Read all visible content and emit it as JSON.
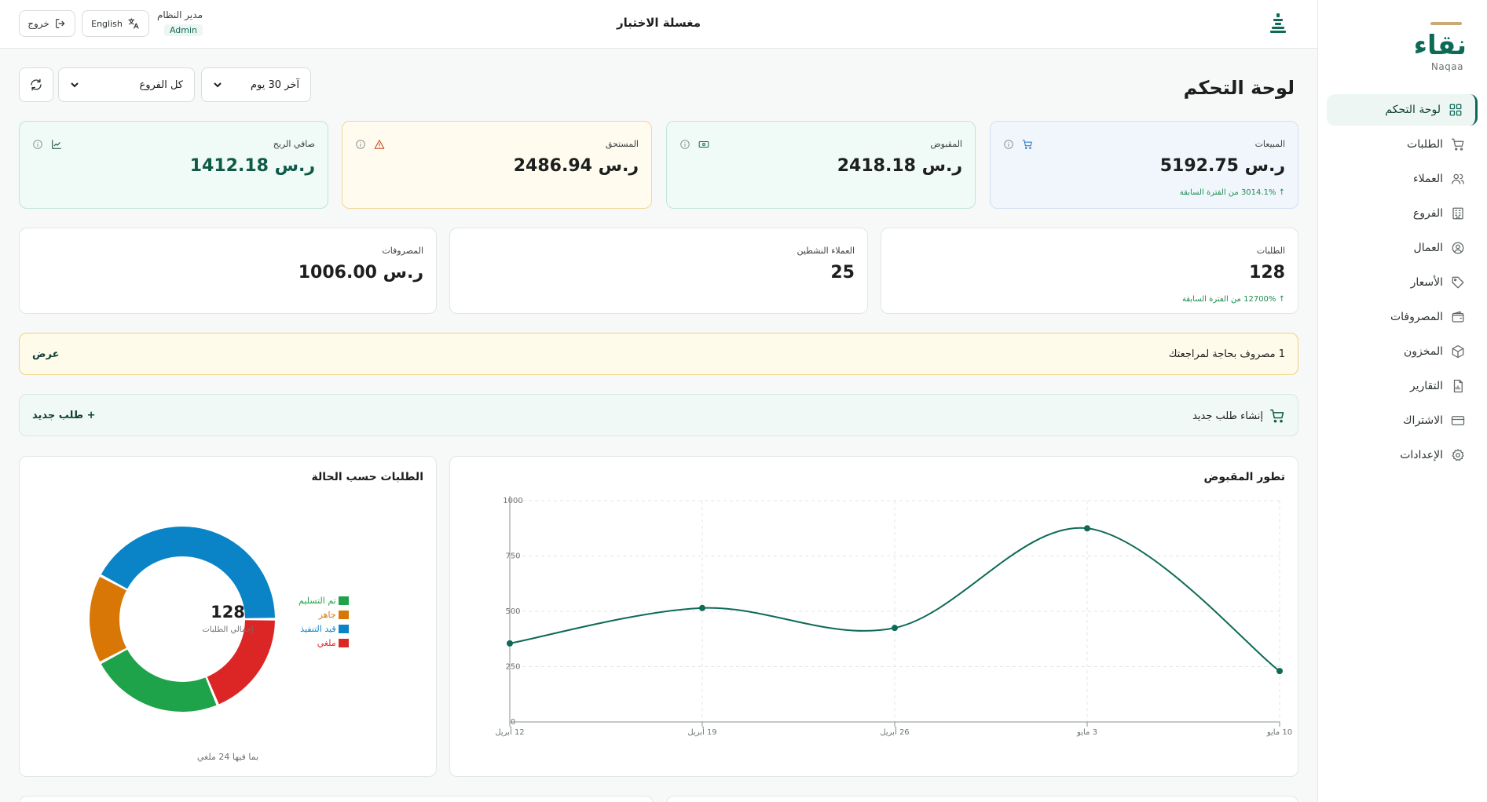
{
  "app": {
    "name": "نقاء",
    "name_latin": "Naqaa",
    "brand_color": "#0e6a57"
  },
  "sidebar": {
    "items": [
      {
        "label": "لوحة التحكم",
        "icon": "dashboard-grid-icon",
        "active": true
      },
      {
        "label": "الطلبات",
        "icon": "cart-icon"
      },
      {
        "label": "العملاء",
        "icon": "users-icon"
      },
      {
        "label": "الفروع",
        "icon": "building-icon"
      },
      {
        "label": "العمال",
        "icon": "user-circle-icon"
      },
      {
        "label": "الأسعار",
        "icon": "tag-icon"
      },
      {
        "label": "المصروفات",
        "icon": "wallet-icon"
      },
      {
        "label": "المخزون",
        "icon": "box-icon"
      },
      {
        "label": "التقارير",
        "icon": "report-icon"
      },
      {
        "label": "الاشتراك",
        "icon": "credit-card-icon"
      },
      {
        "label": "الإعدادات",
        "icon": "gear-icon"
      }
    ]
  },
  "topbar": {
    "title": "مغسلة الاختبار",
    "user_name": "مدير النظام",
    "user_role": "Admin",
    "language_label": "English",
    "logout_label": "خروج"
  },
  "main": {
    "page_title": "لوحة التحكم",
    "period_select": "آخر 30 يوم",
    "branch_select": "كل الفروع"
  },
  "stats": {
    "sales": {
      "label": "المبيعات",
      "value": "ر.س 5192.75",
      "change": "↑ 3014.1% من الفترة السابقة"
    },
    "collected": {
      "label": "المقبوض",
      "value": "ر.س 2418.18"
    },
    "due": {
      "label": "المستحق",
      "value": "ر.س 2486.94"
    },
    "net_profit": {
      "label": "صافي الربح",
      "value": "ر.س 1412.18"
    },
    "orders": {
      "label": "الطلبات",
      "value": "128",
      "change": "↑ 12700% من الفترة السابقة"
    },
    "active_customers": {
      "label": "العملاء النشطين",
      "value": "25"
    },
    "expenses": {
      "label": "المصروفات",
      "value": "ر.س 1006.00"
    }
  },
  "alert": {
    "text": "1 مصروف بحاجة لمراجعتك",
    "action": "عرض"
  },
  "quick_action": {
    "label": "إنشاء طلب جديد",
    "button": "+ طلب جديد"
  },
  "colors": {
    "delivered": "#1fa34a",
    "ready": "#d97706",
    "in_progress": "#0a84c6",
    "cancelled": "#dc2626",
    "line": "#0e6a57"
  },
  "chart_data": [
    {
      "type": "line",
      "title": "تطور المقبوض",
      "x": [
        "12 أبريل",
        "19 أبريل",
        "26 أبريل",
        "3 مايو",
        "10 مايو"
      ],
      "series": [
        {
          "values": [
            355,
            515,
            425,
            875,
            230
          ]
        }
      ],
      "ylim": [
        0,
        1000
      ],
      "yticks": [
        "0",
        "250",
        "500",
        "750",
        "1000"
      ],
      "grid": true
    },
    {
      "type": "pie",
      "title": "الطلبات حسب الحالة",
      "center_value": "128",
      "center_label": "إجمالي الطلبات",
      "footnote": "بما فيها 24 ملغي",
      "legend_placement": "left",
      "categories": [
        "تم التسليم",
        "جاهز",
        "قيد التنفيذ",
        "ملغي"
      ],
      "values": [
        30,
        20,
        54,
        24
      ]
    }
  ]
}
